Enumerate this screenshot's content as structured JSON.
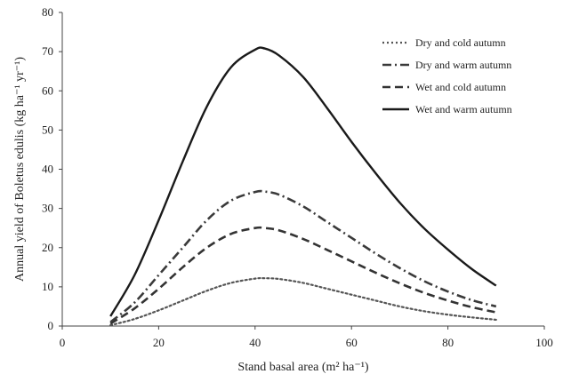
{
  "chart_data": {
    "type": "line",
    "title": "",
    "xlabel": "Stand basal area (m² ha⁻¹)",
    "ylabel": "Annual yield of Boletus edulis (kg ha⁻¹ yr⁻¹)",
    "xlim": [
      0,
      100
    ],
    "ylim": [
      0,
      80
    ],
    "xticks": [
      "0",
      "20",
      "40",
      "60",
      "80",
      "100"
    ],
    "yticks": [
      "0",
      "10",
      "20",
      "30",
      "40",
      "50",
      "60",
      "70",
      "80"
    ],
    "grid": false,
    "legend_position": "top-right",
    "x": [
      10,
      15,
      20,
      25,
      30,
      35,
      40,
      42,
      45,
      50,
      55,
      60,
      65,
      70,
      75,
      80,
      85,
      90
    ],
    "series": [
      {
        "name": "Dry and cold autumn",
        "style": "dotted",
        "color": "#555555",
        "values": [
          0.2,
          1.8,
          4.0,
          6.5,
          9.0,
          11.0,
          12.1,
          12.2,
          12.0,
          11.0,
          9.5,
          8.0,
          6.5,
          5.0,
          3.8,
          2.9,
          2.2,
          1.6
        ]
      },
      {
        "name": "Dry and warm autumn",
        "style": "dashdot",
        "color": "#3a3a3a",
        "values": [
          1.0,
          6.0,
          13.0,
          20.0,
          27.0,
          32.0,
          34.2,
          34.3,
          33.5,
          30.5,
          26.5,
          22.5,
          18.5,
          14.8,
          11.5,
          8.8,
          6.6,
          5.0
        ]
      },
      {
        "name": "Wet and cold autumn",
        "style": "dashed",
        "color": "#333333",
        "values": [
          0.6,
          4.5,
          9.5,
          15.0,
          20.0,
          23.5,
          25.0,
          25.0,
          24.4,
          22.2,
          19.4,
          16.5,
          13.6,
          10.9,
          8.5,
          6.5,
          4.8,
          3.5
        ]
      },
      {
        "name": "Wet and warm autumn",
        "style": "solid",
        "color": "#1a1a1a",
        "values": [
          2.5,
          13.0,
          27.0,
          42.0,
          56.0,
          66.0,
          70.5,
          70.8,
          69.0,
          63.5,
          55.5,
          47.0,
          39.0,
          31.5,
          25.0,
          19.5,
          14.5,
          10.3
        ]
      }
    ]
  }
}
